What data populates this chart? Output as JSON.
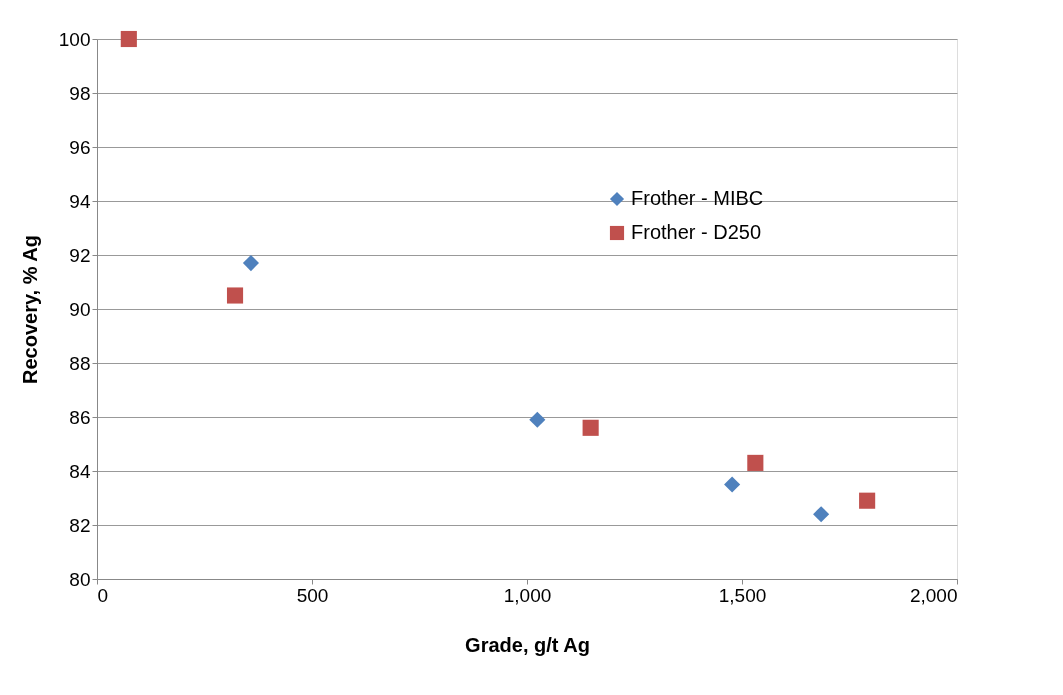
{
  "chart_data": {
    "type": "scatter",
    "xlabel": "Grade, g/t Ag",
    "ylabel": "Recovery, % Ag",
    "xlim": [
      0,
      2000
    ],
    "xticks": [
      0,
      500,
      {
        "value": 1000,
        "label": "1,000"
      },
      {
        "value": 1500,
        "label": "1,500"
      },
      {
        "value": 2000,
        "label": "2,000"
      }
    ],
    "ylim": [
      80,
      100
    ],
    "yticks": [
      80,
      82,
      84,
      86,
      88,
      90,
      92,
      94,
      96,
      98,
      100
    ],
    "grid": "y",
    "legend": "top right",
    "series": [
      {
        "name": "Frother - MIBC",
        "color": "#4f81bd",
        "marker": "diamond",
        "x": [
          358,
          1024,
          1477,
          1684
        ],
        "values": [
          91.7,
          85.9,
          83.5,
          82.4
        ]
      },
      {
        "name": "Frother - D250",
        "color": "#c0504d",
        "marker": "square",
        "x": [
          74,
          321,
          1148,
          1531,
          1791
        ],
        "values": [
          100,
          90.5,
          85.6,
          84.3,
          82.9
        ]
      }
    ]
  }
}
